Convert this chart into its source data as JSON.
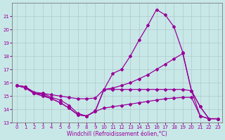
{
  "xlabel": "Windchill (Refroidissement éolien,°C)",
  "background_color": "#c8e8e8",
  "line_color": "#990099",
  "grid_color": "#b0c8c8",
  "x_values": [
    0,
    1,
    2,
    3,
    4,
    5,
    6,
    7,
    8,
    9,
    10,
    11,
    12,
    13,
    14,
    15,
    16,
    17,
    18,
    19,
    20,
    21,
    22,
    23
  ],
  "line_peak_y": [
    15.8,
    15.7,
    15.2,
    15.1,
    14.8,
    14.5,
    14.1,
    13.6,
    13.5,
    13.85,
    15.5,
    16.7,
    17.0,
    18.0,
    19.2,
    20.3,
    21.5,
    21.1,
    20.2,
    18.3,
    15.4,
    14.2,
    13.3,
    13.3
  ],
  "line_diag_y": [
    15.8,
    15.7,
    15.3,
    15.2,
    14.9,
    14.7,
    14.3,
    13.7,
    13.5,
    13.9,
    15.5,
    15.6,
    15.8,
    16.0,
    16.3,
    16.6,
    17.0,
    17.4,
    17.8,
    18.2,
    15.4,
    14.2,
    13.3,
    13.3
  ],
  "line_flat_y": [
    15.8,
    15.7,
    15.2,
    15.2,
    15.1,
    15.0,
    14.9,
    14.8,
    14.8,
    14.85,
    15.5,
    15.5,
    15.5,
    15.5,
    15.5,
    15.5,
    15.5,
    15.5,
    15.5,
    15.5,
    15.4,
    13.5,
    13.3,
    13.3
  ],
  "line_dip_y": [
    15.8,
    15.6,
    15.2,
    15.0,
    14.8,
    14.5,
    14.1,
    13.6,
    13.5,
    13.85,
    14.1,
    14.2,
    14.3,
    14.4,
    14.5,
    14.6,
    14.7,
    14.8,
    14.85,
    14.9,
    14.9,
    13.5,
    13.3,
    13.3
  ],
  "ylim": [
    13.0,
    22.0
  ],
  "xlim": [
    -0.5,
    23.5
  ],
  "yticks": [
    13,
    14,
    15,
    16,
    17,
    18,
    19,
    20,
    21
  ],
  "xticks": [
    0,
    1,
    2,
    3,
    4,
    5,
    6,
    7,
    8,
    9,
    10,
    11,
    12,
    13,
    14,
    15,
    16,
    17,
    18,
    19,
    20,
    21,
    22,
    23
  ]
}
